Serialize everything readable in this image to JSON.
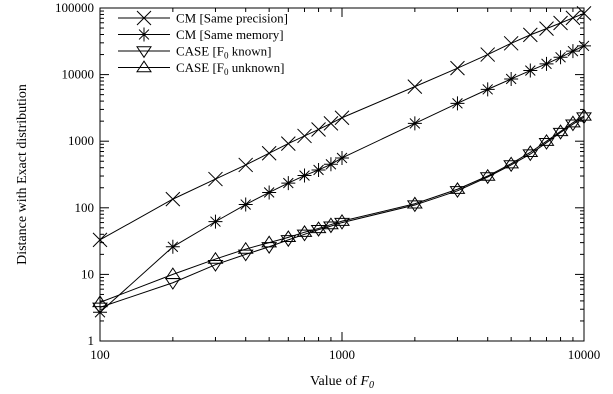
{
  "chart_data": {
    "type": "line",
    "xlabel": "Value of F",
    "xlabel_sub": "0",
    "ylabel": "Distance with Exact distribution",
    "xscale": "log",
    "yscale": "log",
    "xlim": [
      100,
      10000
    ],
    "ylim": [
      1,
      100000
    ],
    "xticks": [
      100,
      1000,
      10000
    ],
    "xtick_labels": [
      "100",
      "1000",
      "10000"
    ],
    "yticks": [
      1,
      10,
      100,
      1000,
      10000,
      100000
    ],
    "ytick_labels": [
      "1",
      "10",
      "100",
      "1000",
      "10000",
      "100000"
    ],
    "grid": false,
    "legend_position": "top-left",
    "x": [
      100,
      200,
      300,
      400,
      500,
      600,
      700,
      800,
      900,
      1000,
      2000,
      3000,
      4000,
      5000,
      6000,
      7000,
      8000,
      9000,
      10000
    ],
    "series": [
      {
        "name": "CM [Same precision]",
        "marker": "x",
        "values": [
          33,
          135,
          270,
          440,
          660,
          920,
          1200,
          1500,
          1850,
          2250,
          6600,
          12500,
          20000,
          29500,
          39500,
          49000,
          59500,
          71000,
          83000
        ]
      },
      {
        "name": "CM [Same memory]",
        "marker": "asterisk",
        "values": [
          2.7,
          26,
          62,
          112,
          170,
          235,
          305,
          370,
          450,
          560,
          1850,
          3700,
          6000,
          8600,
          11500,
          14500,
          18200,
          22500,
          27000
        ]
      },
      {
        "name_parts": [
          "CASE [F",
          "0",
          " known]"
        ],
        "marker": "triangle-down",
        "values": [
          3.2,
          7.5,
          14,
          20,
          26,
          33,
          40,
          47,
          53,
          60,
          110,
          180,
          290,
          440,
          640,
          950,
          1350,
          1800,
          2300
        ]
      },
      {
        "name_parts": [
          "CASE [F",
          "0",
          " unknown]"
        ],
        "marker": "triangle-up",
        "values": [
          3.8,
          10,
          17,
          24,
          30,
          36,
          43,
          49,
          56,
          63,
          115,
          190,
          300,
          460,
          680,
          1000,
          1400,
          1900,
          2400
        ]
      }
    ]
  }
}
